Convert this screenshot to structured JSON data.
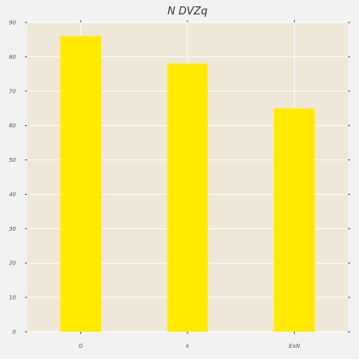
{
  "chart_data": {
    "type": "bar",
    "title": "N DVZq",
    "xlabel": "",
    "ylabel": "",
    "categories": [
      "G",
      "k",
      "ExN"
    ],
    "values": [
      86,
      78,
      65
    ],
    "ylim": [
      0,
      90
    ],
    "yticks": [
      0,
      10,
      20,
      30,
      40,
      50,
      60,
      70,
      80,
      90
    ],
    "grid": true,
    "legend": "none",
    "colors": {
      "bar": "#ffea00",
      "plot_background": "#efe8d8",
      "figure_background": "#f2f2f2",
      "grid": "#ffffff"
    }
  }
}
